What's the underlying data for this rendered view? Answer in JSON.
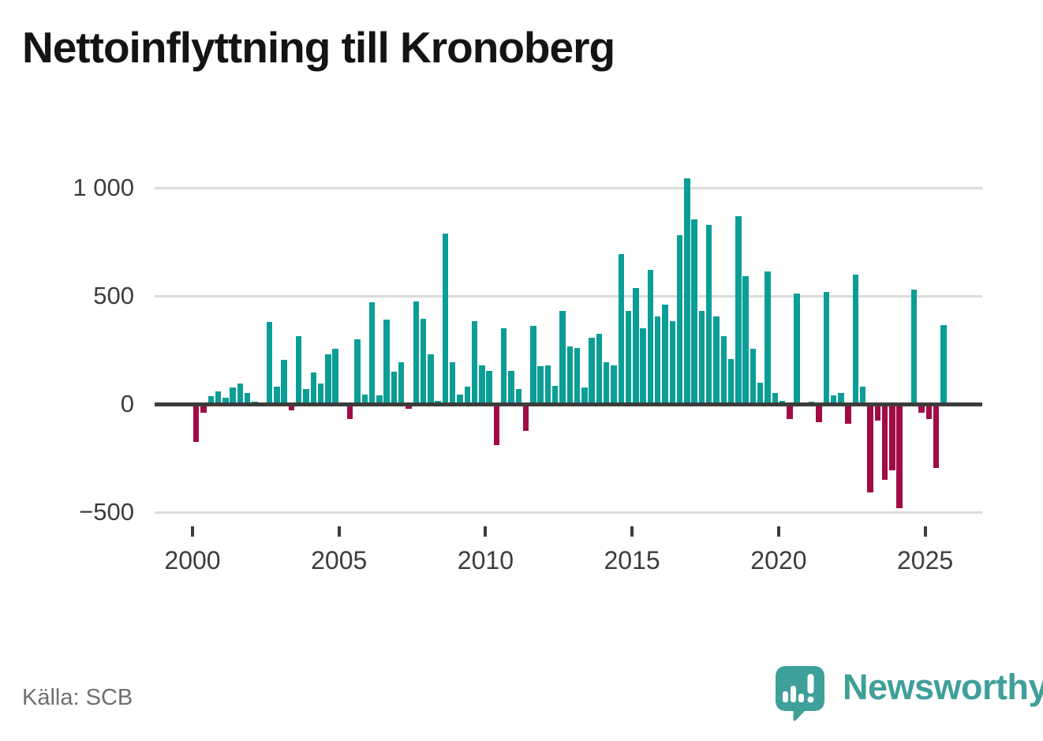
{
  "header": {
    "title": "Nettoinflyttning till Kronoberg"
  },
  "footer": {
    "source": "Källa: SCB"
  },
  "brand": {
    "name": "Newsworthy",
    "logo_icon": "speech-bubble-bar-chart-exclamation"
  },
  "colors": {
    "bar_positive": "#0a9e96",
    "bar_negative": "#a30b45",
    "brand_teal": "#3f9f99",
    "title_text": "#141414",
    "axis_text": "#3c3c3c",
    "grid_line": "#dcdcdc",
    "zero_line": "#3c3c3c",
    "source_text": "#6f6f6f",
    "background": "#ffffff"
  },
  "chart_data": {
    "type": "bar",
    "title": "Nettoinflyttning till Kronoberg",
    "frequency": "quarterly",
    "first_period": "2000 Q1",
    "last_period": "2025 Q3",
    "grid": "horizontal",
    "legend": "none",
    "xlabel": "",
    "ylabel": "",
    "ylim": [
      -560,
      1100
    ],
    "x_tick_labels": [
      "2000",
      "2005",
      "2010",
      "2015",
      "2020",
      "2025"
    ],
    "x_tick_years": [
      2000,
      2005,
      2010,
      2015,
      2020,
      2025
    ],
    "y_tick_labels": [
      "1 000",
      "500",
      "0",
      "−500"
    ],
    "y_tick_values": [
      1000,
      500,
      0,
      -500
    ],
    "y_gridline_values": [
      1000,
      500,
      -500
    ],
    "series": [
      {
        "name": "Nettoinflyttning",
        "values": [
          -175,
          -40,
          35,
          60,
          30,
          75,
          95,
          50,
          10,
          0,
          380,
          80,
          205,
          -30,
          315,
          70,
          145,
          95,
          230,
          255,
          5,
          -70,
          300,
          45,
          470,
          40,
          390,
          150,
          195,
          -20,
          475,
          395,
          230,
          15,
          790,
          195,
          45,
          80,
          385,
          180,
          155,
          -190,
          350,
          155,
          70,
          -125,
          360,
          175,
          180,
          85,
          430,
          265,
          260,
          75,
          305,
          325,
          195,
          180,
          695,
          430,
          535,
          350,
          620,
          405,
          460,
          385,
          780,
          1045,
          855,
          430,
          830,
          405,
          315,
          210,
          870,
          590,
          255,
          100,
          615,
          50,
          15,
          -70,
          510,
          0,
          10,
          -85,
          520,
          40,
          50,
          -90,
          600,
          80,
          -410,
          -75,
          -350,
          -305,
          -480,
          0,
          530,
          -40,
          -70,
          -295,
          365
        ]
      }
    ]
  }
}
